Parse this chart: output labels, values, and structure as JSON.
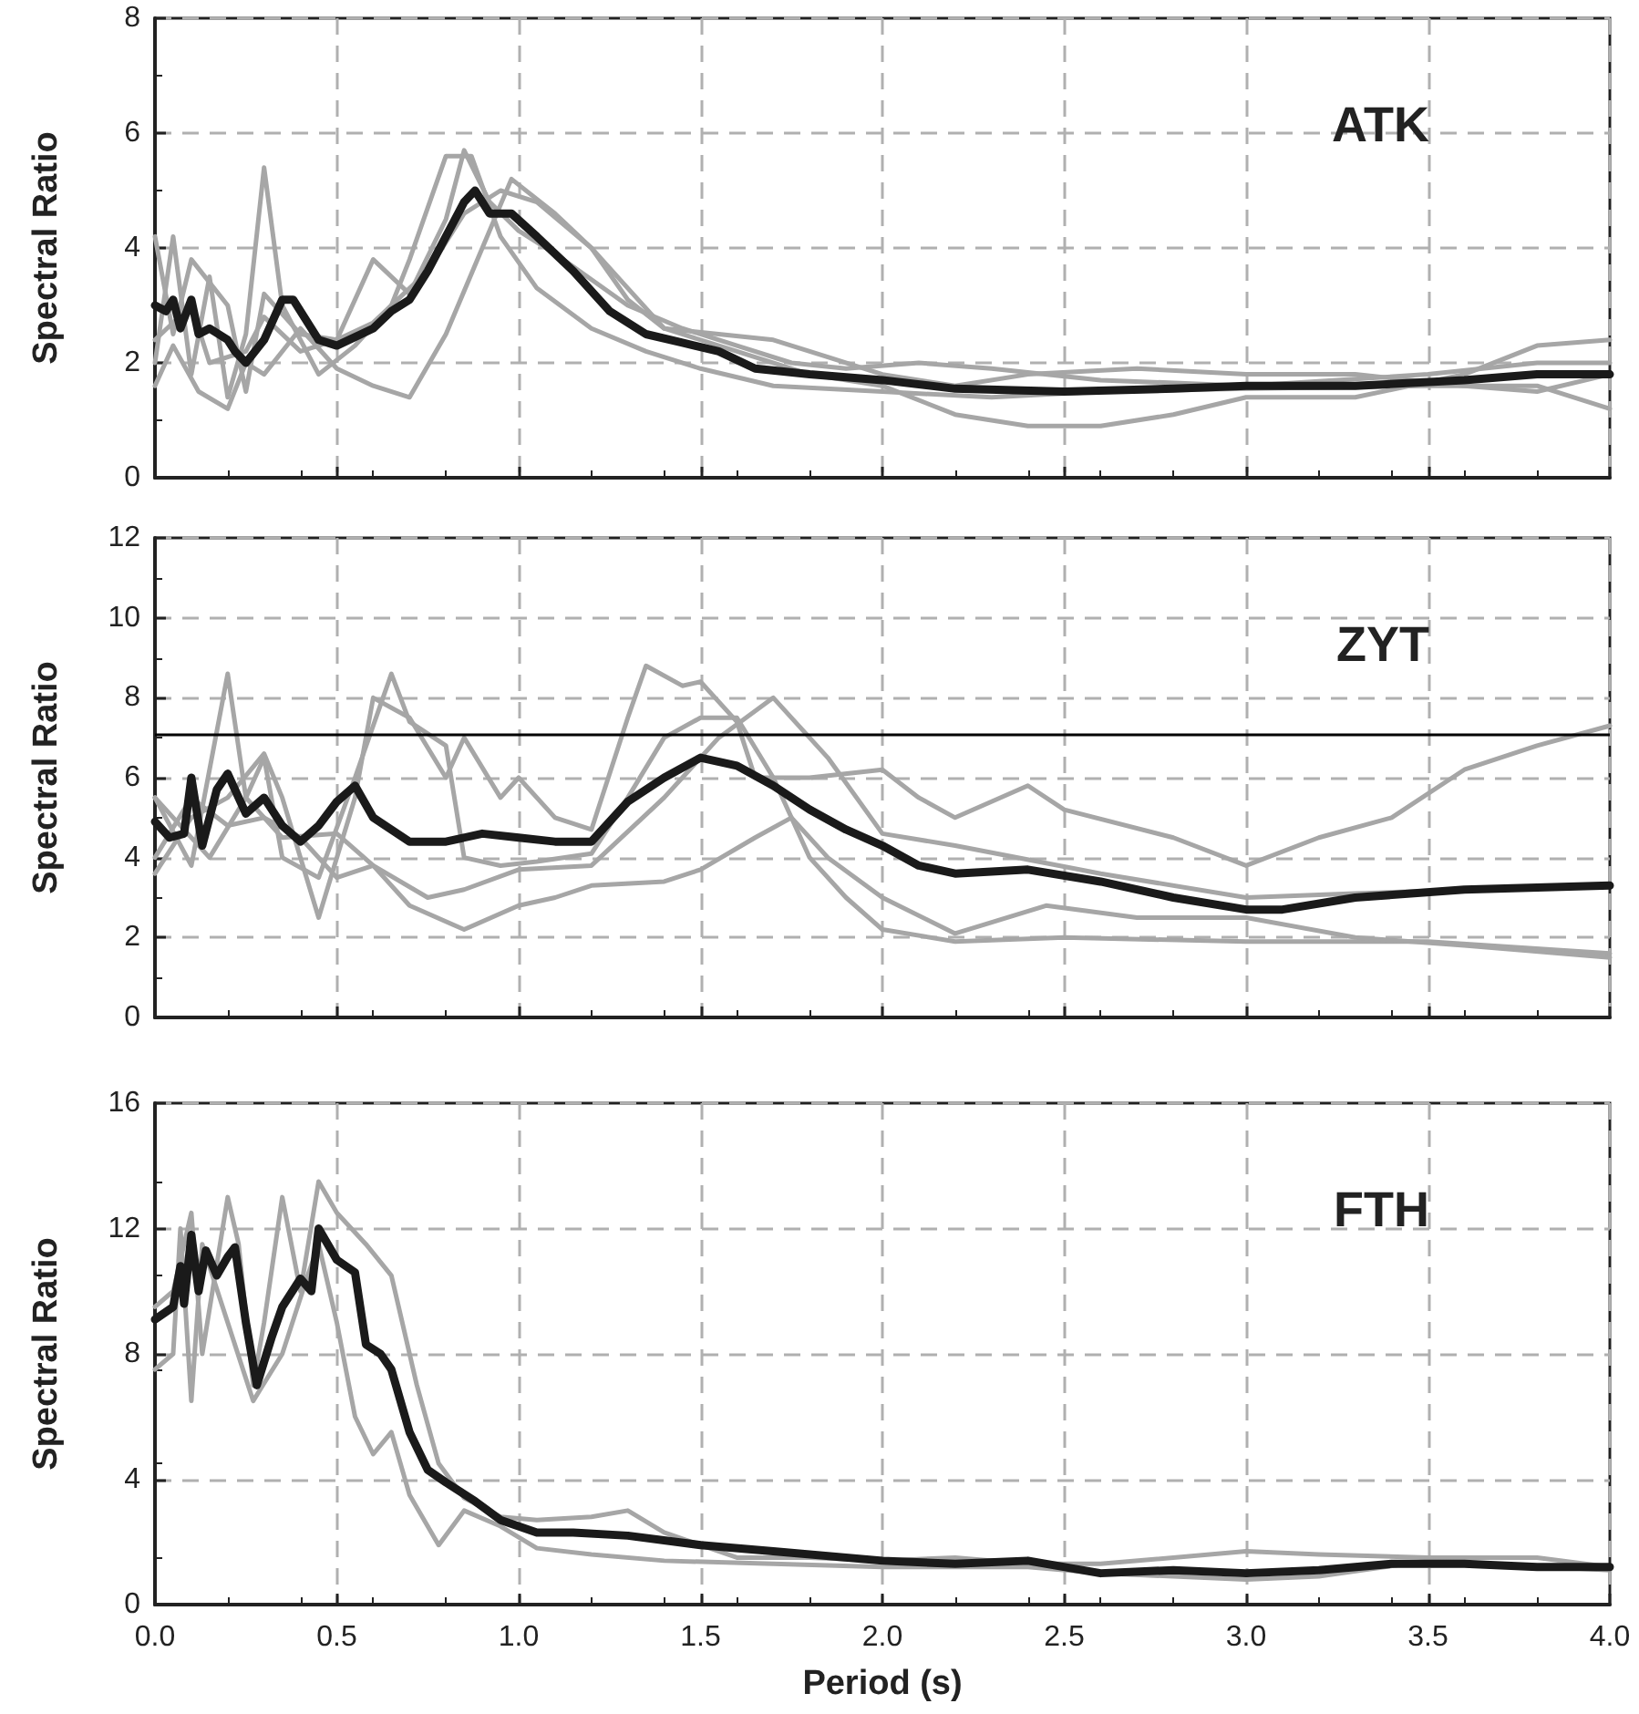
{
  "chart_data": [
    {
      "type": "line",
      "title": "ATK",
      "ylabel": "Spectral Ratio",
      "xlim": [
        0,
        4
      ],
      "xticks": [
        0,
        0.5,
        1,
        1.5,
        2,
        2.5,
        3,
        3.5,
        4
      ],
      "ylim": [
        0,
        8
      ],
      "yticks": [
        0,
        2,
        4,
        6,
        8
      ],
      "grid": true,
      "tick_labels": "y",
      "marker": "none",
      "line_style": "solid",
      "series": [
        {
          "color": "#a6a6a6",
          "x": [
            0,
            0.05,
            0.1,
            0.15,
            0.2,
            0.25,
            0.3,
            0.35,
            0.45,
            0.55,
            0.65,
            0.7,
            0.8,
            0.87,
            0.95,
            1.05,
            1.2,
            1.35,
            1.5,
            1.7,
            2.0,
            2.3,
            2.6,
            3.0,
            3.5,
            3.8,
            4.0
          ],
          "values": [
            2.0,
            4.2,
            1.8,
            3.5,
            1.4,
            2.5,
            5.4,
            3.0,
            1.8,
            2.3,
            3.0,
            3.8,
            5.6,
            5.6,
            4.2,
            3.3,
            2.6,
            2.2,
            1.9,
            1.6,
            1.5,
            1.4,
            1.5,
            1.55,
            1.6,
            1.6,
            1.2
          ]
        },
        {
          "color": "#a6a6a6",
          "x": [
            0,
            0.05,
            0.12,
            0.2,
            0.25,
            0.3,
            0.4,
            0.5,
            0.6,
            0.7,
            0.8,
            0.9,
            0.98,
            1.1,
            1.2,
            1.3,
            1.4,
            1.6,
            1.8,
            2.0,
            2.2,
            2.4,
            2.6,
            2.8,
            3.0,
            3.3,
            3.6,
            3.8,
            4.0
          ],
          "values": [
            1.6,
            2.3,
            1.5,
            1.2,
            2.0,
            1.8,
            2.6,
            1.9,
            1.6,
            1.4,
            2.5,
            4.0,
            5.2,
            4.6,
            4.0,
            3.1,
            2.6,
            2.2,
            1.8,
            1.6,
            1.1,
            0.9,
            0.9,
            1.1,
            1.4,
            1.4,
            1.8,
            2.3,
            2.4
          ]
        },
        {
          "color": "#a6a6a6",
          "x": [
            0,
            0.05,
            0.1,
            0.2,
            0.25,
            0.3,
            0.4,
            0.5,
            0.6,
            0.7,
            0.8,
            0.85,
            0.92,
            1.0,
            1.1,
            1.3,
            1.45,
            1.6,
            1.75,
            1.9,
            2.1,
            2.3,
            2.6,
            3.0,
            3.5,
            3.8,
            4.0
          ],
          "values": [
            4.2,
            2.5,
            3.8,
            3.0,
            1.5,
            3.2,
            2.5,
            2.4,
            3.8,
            3.2,
            4.5,
            5.7,
            4.8,
            4.3,
            3.9,
            3.0,
            2.6,
            2.3,
            2.0,
            1.9,
            2.0,
            1.9,
            1.7,
            1.6,
            1.8,
            2.0,
            2.0
          ]
        },
        {
          "color": "#a6a6a6",
          "x": [
            0,
            0.1,
            0.15,
            0.25,
            0.3,
            0.4,
            0.5,
            0.6,
            0.75,
            0.85,
            0.95,
            1.05,
            1.2,
            1.3,
            1.4,
            1.55,
            1.7,
            1.85,
            2.0,
            2.2,
            2.4,
            2.7,
            3.0,
            3.3,
            3.6,
            3.8,
            4.0
          ],
          "values": [
            2.4,
            3.0,
            2.0,
            2.2,
            2.8,
            2.2,
            2.4,
            2.7,
            3.6,
            4.6,
            5.0,
            4.8,
            4.0,
            3.3,
            2.6,
            2.5,
            2.4,
            2.1,
            1.8,
            1.6,
            1.8,
            1.9,
            1.8,
            1.8,
            1.6,
            1.5,
            1.8
          ]
        },
        {
          "color": "#1a1a1a",
          "x": [
            0,
            0.03,
            0.05,
            0.07,
            0.1,
            0.12,
            0.15,
            0.2,
            0.22,
            0.25,
            0.3,
            0.35,
            0.38,
            0.45,
            0.5,
            0.6,
            0.65,
            0.7,
            0.75,
            0.8,
            0.85,
            0.88,
            0.92,
            0.98,
            1.05,
            1.15,
            1.25,
            1.35,
            1.45,
            1.55,
            1.65,
            1.8,
            2.0,
            2.2,
            2.5,
            2.8,
            3.0,
            3.3,
            3.6,
            3.8,
            4.0
          ],
          "values": [
            3.0,
            2.9,
            3.1,
            2.6,
            3.1,
            2.5,
            2.6,
            2.4,
            2.2,
            2.0,
            2.4,
            3.1,
            3.1,
            2.4,
            2.3,
            2.6,
            2.9,
            3.1,
            3.6,
            4.2,
            4.8,
            5.0,
            4.6,
            4.6,
            4.2,
            3.6,
            2.9,
            2.5,
            2.35,
            2.2,
            1.9,
            1.8,
            1.7,
            1.55,
            1.5,
            1.55,
            1.6,
            1.6,
            1.7,
            1.8,
            1.8
          ]
        }
      ]
    },
    {
      "type": "line",
      "title": "ZYT",
      "ylabel": "Spectral Ratio",
      "xlim": [
        0,
        4
      ],
      "xticks": [
        0,
        0.5,
        1,
        1.5,
        2,
        2.5,
        3,
        3.5,
        4
      ],
      "ylim": [
        0,
        12
      ],
      "yticks": [
        0,
        2,
        4,
        6,
        8,
        10,
        12
      ],
      "grid": true,
      "tick_labels": "y",
      "marker": "none",
      "line_style": "solid",
      "ref_lines": [
        {
          "axis": "y",
          "value": 7.1,
          "color": "#000000"
        }
      ],
      "series": [
        {
          "color": "#a6a6a6",
          "x": [
            0,
            0.1,
            0.2,
            0.25,
            0.3,
            0.35,
            0.45,
            0.55,
            0.65,
            0.7,
            0.8,
            0.85,
            0.95,
            1.05,
            1.2,
            1.3,
            1.4,
            1.5,
            1.6,
            1.7,
            1.8,
            1.9,
            2.0,
            2.2,
            2.5,
            3.0,
            3.5,
            4.0
          ],
          "values": [
            5.5,
            3.8,
            8.6,
            5.5,
            6.5,
            4.0,
            3.5,
            6.0,
            8.6,
            7.4,
            6.8,
            4.0,
            3.8,
            3.9,
            4.1,
            5.5,
            7.0,
            7.5,
            7.5,
            6.0,
            4.0,
            3.0,
            2.2,
            1.9,
            2.0,
            1.9,
            1.9,
            1.6
          ]
        },
        {
          "color": "#a6a6a6",
          "x": [
            0,
            0.1,
            0.2,
            0.3,
            0.35,
            0.45,
            0.55,
            0.6,
            0.7,
            0.8,
            0.85,
            0.95,
            1.0,
            1.1,
            1.2,
            1.3,
            1.35,
            1.45,
            1.5,
            1.6,
            1.65,
            1.8,
            2.0,
            2.1,
            2.2,
            2.4,
            2.5,
            2.8,
            3.0,
            3.2,
            3.4,
            3.6,
            3.8,
            4.0
          ],
          "values": [
            3.6,
            5.0,
            5.5,
            6.6,
            5.5,
            2.5,
            5.5,
            8.0,
            7.5,
            6.0,
            7.0,
            5.5,
            6.0,
            5.0,
            4.7,
            7.5,
            8.8,
            8.3,
            8.4,
            7.4,
            6.0,
            6.0,
            6.2,
            5.5,
            5.0,
            5.8,
            5.2,
            4.5,
            3.8,
            4.5,
            5.0,
            6.2,
            6.8,
            7.3
          ]
        },
        {
          "color": "#a6a6a6",
          "x": [
            0,
            0.1,
            0.2,
            0.3,
            0.4,
            0.5,
            0.6,
            0.7,
            0.85,
            1.0,
            1.1,
            1.2,
            1.4,
            1.5,
            1.65,
            1.75,
            1.85,
            2.0,
            2.2,
            2.45,
            2.7,
            3.0,
            3.3,
            3.6,
            4.0
          ],
          "values": [
            4.0,
            5.5,
            4.8,
            5.0,
            4.5,
            3.5,
            3.8,
            2.8,
            2.2,
            2.8,
            3.0,
            3.3,
            3.4,
            3.7,
            4.5,
            5.0,
            4.0,
            3.0,
            2.1,
            2.8,
            2.5,
            2.5,
            2.0,
            1.8,
            1.5
          ]
        },
        {
          "color": "#a6a6a6",
          "x": [
            0,
            0.15,
            0.25,
            0.35,
            0.5,
            0.6,
            0.75,
            0.85,
            1.0,
            1.2,
            1.4,
            1.55,
            1.7,
            1.85,
            2.0,
            2.2,
            2.6,
            3.0,
            3.3,
            3.6,
            4.0
          ],
          "values": [
            5.5,
            4.0,
            5.5,
            4.5,
            4.6,
            3.8,
            3.0,
            3.2,
            3.7,
            3.8,
            5.5,
            7.0,
            8.0,
            6.5,
            4.6,
            4.3,
            3.6,
            3.0,
            3.1,
            3.2,
            3.3
          ]
        },
        {
          "color": "#1a1a1a",
          "x": [
            0,
            0.04,
            0.08,
            0.1,
            0.13,
            0.17,
            0.2,
            0.25,
            0.3,
            0.35,
            0.4,
            0.45,
            0.5,
            0.55,
            0.6,
            0.65,
            0.7,
            0.8,
            0.9,
            1.0,
            1.1,
            1.2,
            1.3,
            1.4,
            1.5,
            1.6,
            1.7,
            1.8,
            1.9,
            2.0,
            2.1,
            2.2,
            2.4,
            2.6,
            2.8,
            3.0,
            3.1,
            3.3,
            3.6,
            4.0
          ],
          "values": [
            4.9,
            4.5,
            4.6,
            6.0,
            4.3,
            5.7,
            6.1,
            5.1,
            5.5,
            4.8,
            4.4,
            4.8,
            5.4,
            5.8,
            5.0,
            4.7,
            4.4,
            4.4,
            4.6,
            4.5,
            4.4,
            4.4,
            5.4,
            6.0,
            6.5,
            6.3,
            5.8,
            5.2,
            4.7,
            4.3,
            3.8,
            3.6,
            3.7,
            3.4,
            3.0,
            2.7,
            2.7,
            3.0,
            3.2,
            3.3
          ]
        }
      ]
    },
    {
      "type": "line",
      "title": "FTH",
      "ylabel": "Spectral Ratio",
      "xlabel": "Period (s)",
      "xlim": [
        0,
        4
      ],
      "xticks": [
        {
          "value": 0,
          "label": "0.0"
        },
        0.5,
        {
          "value": 1,
          "label": "1.0"
        },
        1.5,
        {
          "value": 2,
          "label": "2.0"
        },
        2.5,
        {
          "value": 3,
          "label": "3.0"
        },
        3.5,
        {
          "value": 4,
          "label": "4.0"
        }
      ],
      "ylim": [
        0,
        16
      ],
      "yticks": [
        0,
        4,
        8,
        12,
        16
      ],
      "grid": true,
      "marker": "none",
      "line_style": "solid",
      "series": [
        {
          "color": "#a6a6a6",
          "x": [
            0,
            0.05,
            0.1,
            0.13,
            0.2,
            0.23,
            0.27,
            0.3,
            0.35,
            0.4,
            0.45,
            0.5,
            0.58,
            0.65,
            0.72,
            0.78,
            0.85,
            0.95,
            1.05,
            1.2,
            1.3,
            1.4,
            1.6,
            1.8,
            2.0,
            2.2,
            2.4,
            2.6,
            3.0,
            3.2,
            3.5,
            3.8,
            4.0
          ],
          "values": [
            9.5,
            10.0,
            12.5,
            8.0,
            13.0,
            11.5,
            7.0,
            9.0,
            13.0,
            10.0,
            13.5,
            12.5,
            11.5,
            10.5,
            7.0,
            4.5,
            3.4,
            2.8,
            2.7,
            2.8,
            3.0,
            2.3,
            1.5,
            1.5,
            1.4,
            1.5,
            1.3,
            1.3,
            1.7,
            1.6,
            1.5,
            1.5,
            1.2
          ]
        },
        {
          "color": "#a6a6a6",
          "x": [
            0,
            0.05,
            0.07,
            0.1,
            0.13,
            0.2,
            0.27,
            0.35,
            0.42,
            0.45,
            0.5,
            0.55,
            0.6,
            0.65,
            0.7,
            0.78,
            0.85,
            0.95,
            1.05,
            1.2,
            1.4,
            1.7,
            2.0,
            2.4,
            2.6,
            3.0,
            3.2,
            3.5,
            4.0
          ],
          "values": [
            7.5,
            8.0,
            12.0,
            6.5,
            11.5,
            9.0,
            6.5,
            8.0,
            10.5,
            11.5,
            9.0,
            6.0,
            4.8,
            5.5,
            3.5,
            1.9,
            3.0,
            2.5,
            1.8,
            1.6,
            1.4,
            1.3,
            1.2,
            1.2,
            1.0,
            0.8,
            0.9,
            1.4,
            1.1
          ]
        },
        {
          "color": "#1a1a1a",
          "x": [
            0,
            0.05,
            0.07,
            0.08,
            0.1,
            0.12,
            0.14,
            0.17,
            0.2,
            0.22,
            0.25,
            0.28,
            0.32,
            0.35,
            0.4,
            0.43,
            0.45,
            0.5,
            0.55,
            0.58,
            0.62,
            0.65,
            0.7,
            0.75,
            0.8,
            0.88,
            0.95,
            1.05,
            1.15,
            1.3,
            1.5,
            1.7,
            2.0,
            2.2,
            2.4,
            2.6,
            2.8,
            3.0,
            3.2,
            3.4,
            3.6,
            3.8,
            4.0
          ],
          "values": [
            9.1,
            9.5,
            10.8,
            9.6,
            11.8,
            10.0,
            11.3,
            10.5,
            11.1,
            11.4,
            9.0,
            7.0,
            8.5,
            9.5,
            10.4,
            10.0,
            12.0,
            11.0,
            10.6,
            8.3,
            8.0,
            7.5,
            5.5,
            4.3,
            3.9,
            3.3,
            2.7,
            2.3,
            2.3,
            2.2,
            1.9,
            1.7,
            1.4,
            1.3,
            1.4,
            1.0,
            1.1,
            1.0,
            1.1,
            1.3,
            1.3,
            1.2,
            1.2
          ]
        }
      ]
    }
  ]
}
